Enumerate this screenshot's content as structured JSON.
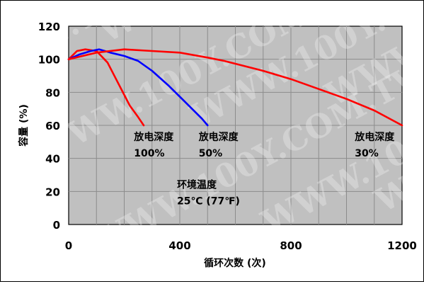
{
  "chart_data": {
    "type": "line",
    "xlabel": "循环次数 (次)",
    "ylabel": "容量 (%)",
    "xlim": [
      0,
      1200
    ],
    "ylim": [
      0,
      120
    ],
    "x_ticks": [
      0,
      400,
      800,
      1200
    ],
    "y_ticks": [
      0,
      20,
      40,
      60,
      80,
      100,
      120
    ],
    "x_tick_labels": [
      "0",
      "400",
      "800",
      "1200"
    ],
    "y_tick_labels": [
      "0",
      "20",
      "40",
      "60",
      "80",
      "100",
      "120"
    ],
    "grid": true,
    "plot_background": "#c0c0c0",
    "series": [
      {
        "color": "#ff0000",
        "points": [
          [
            0,
            100
          ],
          [
            30,
            105
          ],
          [
            60,
            106
          ],
          [
            100,
            105
          ],
          [
            140,
            98
          ],
          [
            180,
            85
          ],
          [
            220,
            72
          ],
          [
            250,
            65
          ],
          [
            270,
            60
          ]
        ]
      },
      {
        "color": "#0000ff",
        "points": [
          [
            0,
            100
          ],
          [
            40,
            103
          ],
          [
            80,
            105
          ],
          [
            110,
            106
          ],
          [
            150,
            104
          ],
          [
            200,
            102
          ],
          [
            250,
            99
          ],
          [
            300,
            93
          ],
          [
            360,
            84
          ],
          [
            420,
            74
          ],
          [
            480,
            64
          ],
          [
            500,
            60
          ]
        ]
      },
      {
        "color": "#ff0000",
        "points": [
          [
            0,
            100
          ],
          [
            100,
            104
          ],
          [
            200,
            106
          ],
          [
            300,
            105
          ],
          [
            400,
            104
          ],
          [
            500,
            101
          ],
          [
            560,
            99
          ],
          [
            700,
            93
          ],
          [
            800,
            88
          ],
          [
            900,
            82
          ],
          [
            1000,
            76
          ],
          [
            1100,
            69
          ],
          [
            1200,
            60
          ]
        ]
      }
    ],
    "annotations": [
      {
        "id": "dod100",
        "lines": [
          "放电深度",
          "100%"
        ],
        "x": 235,
        "y": 51
      },
      {
        "id": "dod50",
        "lines": [
          "放电深度",
          "50%"
        ],
        "x": 468,
        "y": 51
      },
      {
        "id": "dod30",
        "lines": [
          "放电深度",
          "30%"
        ],
        "x": 1030,
        "y": 51
      },
      {
        "id": "temp",
        "lines": [
          "环境温度",
          "25℃ (77℉)"
        ],
        "x": 390,
        "y": 22
      }
    ]
  },
  "watermark": {
    "text": "WWW.100Y.COM.TW",
    "color": "#ffffff"
  }
}
